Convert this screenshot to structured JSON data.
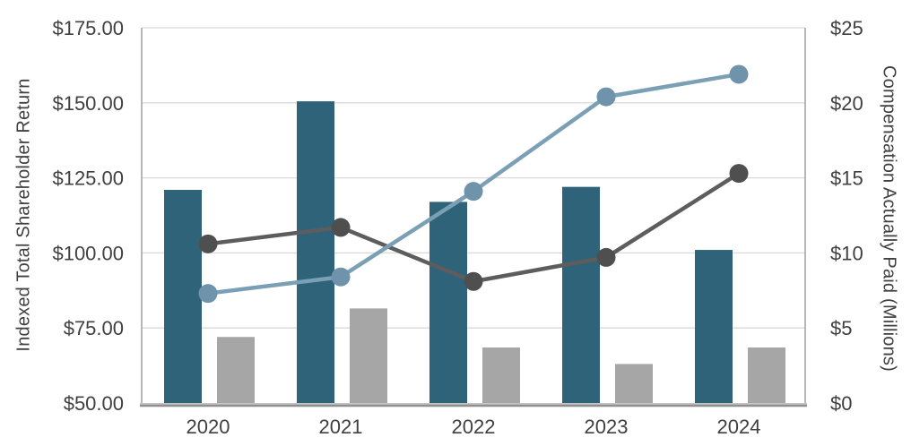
{
  "chart_data": {
    "type": "combo",
    "title": "",
    "categories": [
      "2020",
      "2021",
      "2022",
      "2023",
      "2024"
    ],
    "left_axis": {
      "title": "Indexed Total Shareholder Return",
      "min": 50,
      "max": 175,
      "step": 25,
      "tick_labels": [
        "$50.00",
        "$75.00",
        "$100.00",
        "$125.00",
        "$150.00",
        "$175.00"
      ]
    },
    "right_axis": {
      "title": "Compensation Actually Paid (Millions)",
      "min": 0,
      "max": 25,
      "step": 5,
      "tick_labels": [
        "$0",
        "$5",
        "$10",
        "$15",
        "$20",
        "$25"
      ]
    },
    "series": [
      {
        "name": "teal-bars",
        "type": "bar",
        "axis": "right",
        "color": "#2F637A",
        "values": [
          14.2,
          20.1,
          13.4,
          14.4,
          10.2
        ]
      },
      {
        "name": "gray-bars",
        "type": "bar",
        "axis": "right",
        "color": "#A6A6A6",
        "values": [
          4.4,
          6.3,
          3.7,
          2.6,
          3.7
        ]
      },
      {
        "name": "dark-gray-line",
        "type": "line",
        "axis": "left",
        "color": "#5D5D5D",
        "marker_color": "#4F4F4F",
        "values": [
          103,
          108.5,
          90.5,
          98.5,
          126.5
        ]
      },
      {
        "name": "blue-line",
        "type": "line",
        "axis": "left",
        "color": "#7BA0B6",
        "marker_color": "#6E93AB",
        "values": [
          86.5,
          92,
          120.5,
          152,
          159.5
        ]
      }
    ],
    "grid": true,
    "legend": "none",
    "colors": {
      "gridline": "#D9D9D9",
      "axis_line": "#A6A6A6",
      "x_axis_line_dark": "#8F8F8F",
      "x_axis_line_light": "#C4C4C4",
      "text": "#404040",
      "background": "#FFFFFF"
    }
  }
}
